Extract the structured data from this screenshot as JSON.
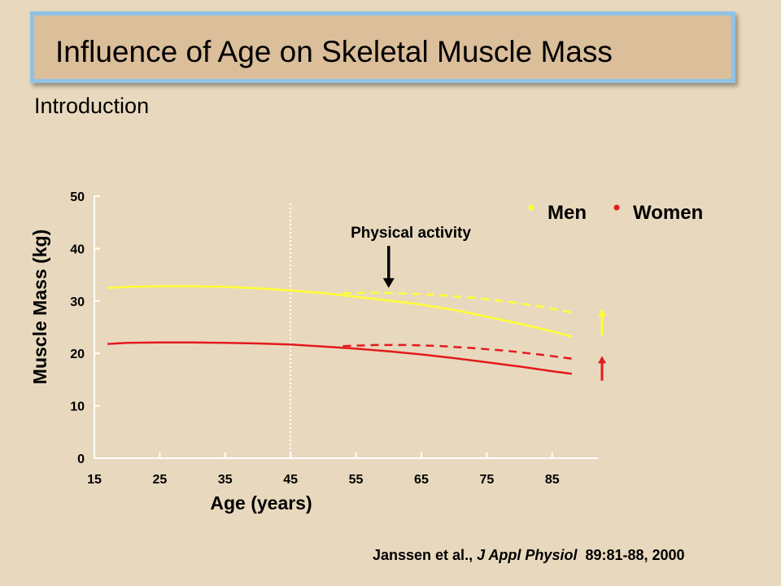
{
  "slide": {
    "title": "Influence of Age on Skeletal Muscle Mass",
    "subtitle": "Introduction"
  },
  "citation": {
    "authors": "Janssen et al.,",
    "journal": "J Appl Physiol",
    "ref": "89:81-88, 2000"
  },
  "chart_data": {
    "type": "line",
    "xlabel": "Age (years)",
    "ylabel": "Muscle Mass (kg)",
    "xlim": [
      15,
      92
    ],
    "ylim": [
      0,
      50
    ],
    "x_ticks": [
      15,
      25,
      35,
      45,
      55,
      65,
      75,
      85
    ],
    "y_ticks": [
      0,
      10,
      20,
      30,
      40,
      50
    ],
    "grid": false,
    "legend": {
      "placement": "top-right",
      "entries": [
        {
          "label": "Men",
          "color": "#ffff33"
        },
        {
          "label": "Women",
          "color": "#e41a1c"
        }
      ]
    },
    "vertical_marker": {
      "x": 45,
      "style": "dotted",
      "color": "#ffffff"
    },
    "annotation": {
      "text": "Physical activity",
      "arrow_x": 60,
      "arrow_y_top": 40.5,
      "arrow_y_bottom": 32.5
    },
    "series": [
      {
        "name": "Men",
        "color": "#ffff33",
        "style": "solid",
        "x": [
          17,
          20,
          25,
          30,
          35,
          40,
          45,
          50,
          55,
          60,
          65,
          70,
          75,
          80,
          85,
          88
        ],
        "y": [
          32.5,
          32.7,
          32.8,
          32.8,
          32.7,
          32.4,
          32.0,
          31.5,
          30.8,
          30.1,
          29.3,
          28.3,
          27.0,
          25.7,
          24.2,
          23.2
        ]
      },
      {
        "name": "Men",
        "color": "#ffff33",
        "style": "dashed",
        "x": [
          53,
          58,
          63,
          68,
          73,
          78,
          83,
          88
        ],
        "y": [
          31.5,
          31.6,
          31.4,
          31.1,
          30.6,
          29.9,
          29.0,
          27.8
        ]
      },
      {
        "name": "Women",
        "color": "#e41a1c",
        "style": "solid",
        "x": [
          17,
          20,
          25,
          30,
          35,
          40,
          45,
          50,
          55,
          60,
          65,
          70,
          75,
          80,
          85,
          88
        ],
        "y": [
          21.8,
          22.0,
          22.1,
          22.1,
          22.0,
          21.9,
          21.7,
          21.3,
          20.9,
          20.4,
          19.8,
          19.1,
          18.3,
          17.5,
          16.6,
          16.1
        ]
      },
      {
        "name": "Women",
        "color": "#e41a1c",
        "style": "dashed",
        "x": [
          53,
          58,
          63,
          68,
          73,
          78,
          83,
          88
        ],
        "y": [
          21.4,
          21.6,
          21.6,
          21.4,
          21.0,
          20.5,
          19.8,
          19.0
        ]
      }
    ],
    "side_arrows": [
      {
        "series": "Men",
        "color": "#ffff33",
        "y_from": 23.5,
        "y_to": 28.5
      },
      {
        "series": "Women",
        "color": "#e41a1c",
        "y_from": 14.8,
        "y_to": 19.5
      }
    ]
  }
}
